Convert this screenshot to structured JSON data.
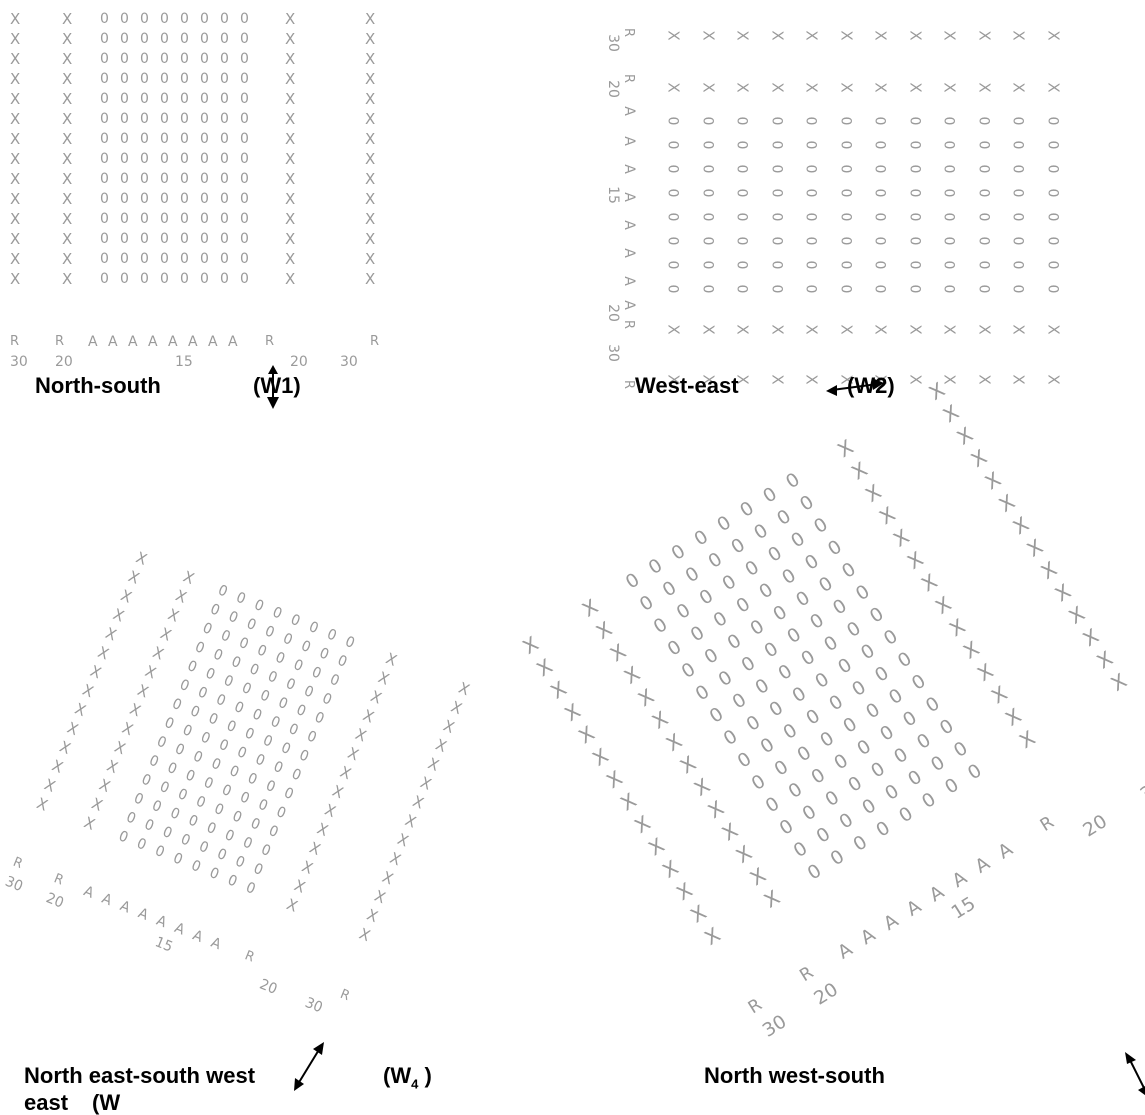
{
  "symbols": {
    "guard": "X",
    "crop": "0",
    "border": "A",
    "row_mark": "R"
  },
  "spacings": {
    "r_outer": "30",
    "r_inner": "20",
    "a_center": "15"
  },
  "captions": {
    "w1": "North-south",
    "w1_code": "(W1)",
    "w2": "West-east",
    "w2_code": "(W2)",
    "w4": "North east-south west",
    "w4_code_open": "(W",
    "w4_code_sub": "4",
    "w4_code_close": " )",
    "w4_cont": "east",
    "w4_cont_code": "(W",
    "w3": "North west-south"
  }
}
